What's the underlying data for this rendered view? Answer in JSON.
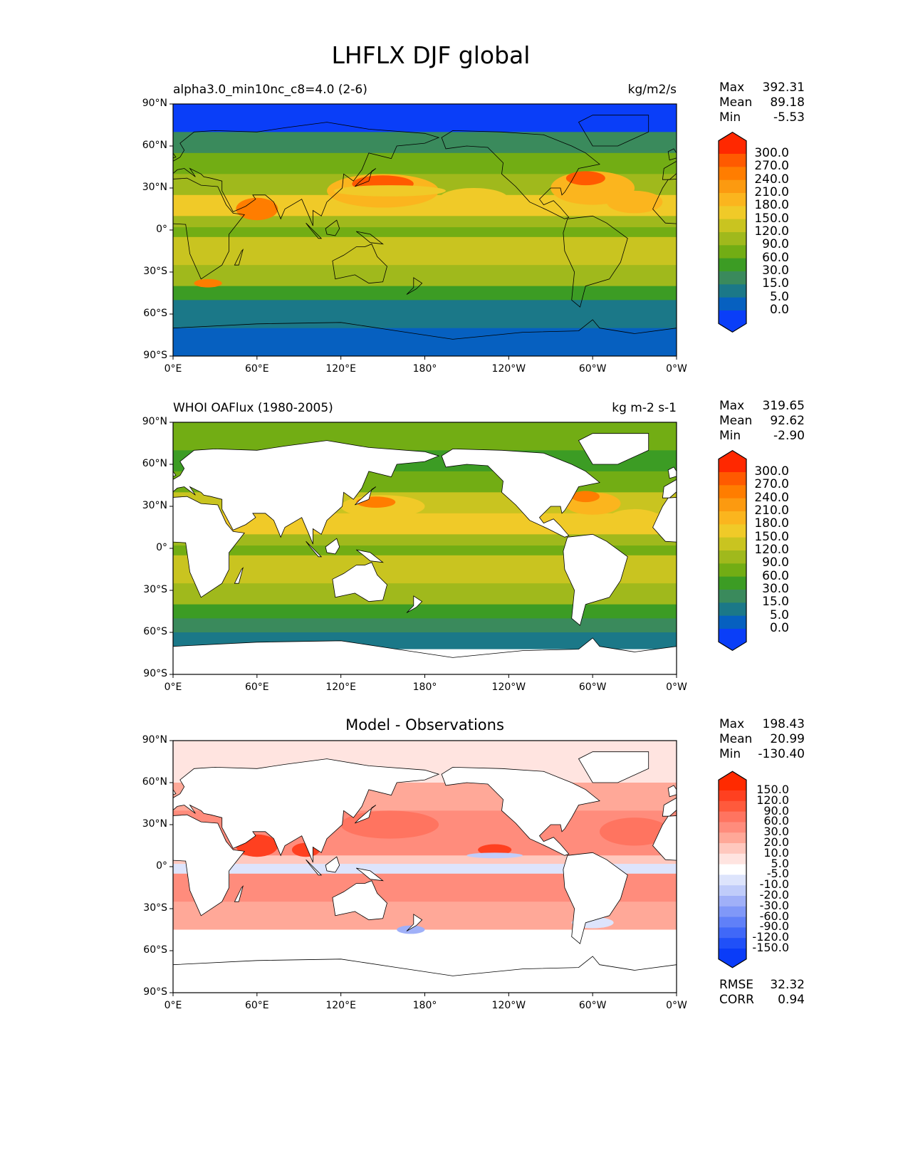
{
  "title": "LHFLX DJF global",
  "x_ticks": [
    "0°E",
    "60°E",
    "120°E",
    "180°",
    "120°W",
    "60°W",
    "0°W"
  ],
  "y_ticks": [
    "90°N",
    "60°N",
    "30°N",
    "0°",
    "30°S",
    "60°S",
    "90°S"
  ],
  "panels": [
    {
      "subtitle_left": "alpha3.0_min10nc_c8=4.0 (2-6)",
      "subtitle_center": "",
      "units": "kg/m2/s",
      "stats": {
        "max_label": "Max",
        "max": "392.31",
        "mean_label": "Mean",
        "mean": "89.18",
        "min_label": "Min",
        "min": "-5.53"
      }
    },
    {
      "subtitle_left": "WHOI OAFlux (1980-2005)",
      "subtitle_center": "",
      "units": "kg m-2 s-1",
      "stats": {
        "max_label": "Max",
        "max": "319.65",
        "mean_label": "Mean",
        "mean": "92.62",
        "min_label": "Min",
        "min": "-2.90"
      }
    },
    {
      "subtitle_left": "",
      "subtitle_center": "Model - Observations",
      "units": "",
      "stats": {
        "max_label": "Max",
        "max": "198.43",
        "mean_label": "Mean",
        "mean": "20.99",
        "min_label": "Min",
        "min": "-130.40"
      },
      "rmse_label": "RMSE",
      "rmse": "32.32",
      "corr_label": "CORR",
      "corr": "0.94"
    }
  ],
  "colorbars": {
    "field": {
      "labels": [
        "300.0",
        "270.0",
        "240.0",
        "210.0",
        "180.0",
        "150.0",
        "120.0",
        "90.0",
        "60.0",
        "30.0",
        "15.0",
        "5.0",
        "0.0"
      ],
      "colors": [
        "#ff2800",
        "#ff5a00",
        "#ff7d00",
        "#fc9a10",
        "#fbb51e",
        "#f0ca28",
        "#c9c420",
        "#a0b91c",
        "#72ad14",
        "#3c9c24",
        "#3a8a5c",
        "#1b7888",
        "#0660c0",
        "#0a3ef8"
      ]
    },
    "diff": {
      "labels": [
        "150.0",
        "120.0",
        "90.0",
        "60.0",
        "30.0",
        "20.0",
        "10.0",
        "5.0",
        "-5.0",
        "-10.0",
        "-20.0",
        "-30.0",
        "-60.0",
        "-90.0",
        "-120.0",
        "-150.0"
      ],
      "colors": [
        "#ff2a00",
        "#ff4020",
        "#ff5a3c",
        "#ff7460",
        "#ff8c7c",
        "#ffa898",
        "#ffc8be",
        "#ffe4e0",
        "#ffffff",
        "#dde4fc",
        "#c0ccfa",
        "#a0b0f8",
        "#8098f8",
        "#6080f8",
        "#4068f8",
        "#2050f8",
        "#0a3cf8"
      ]
    }
  }
}
